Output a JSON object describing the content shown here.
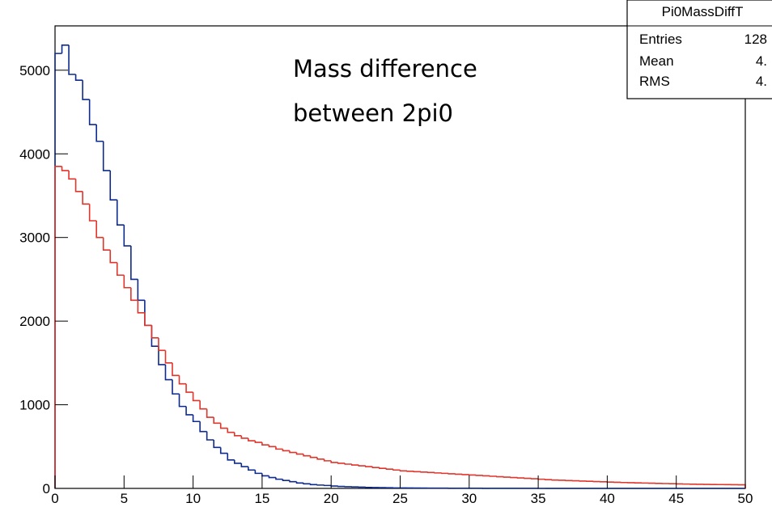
{
  "chart_data": {
    "type": "histogram",
    "annotation": [
      "Mass difference",
      "between 2pi0"
    ],
    "stats": {
      "title": "Pi0MassDiffT",
      "rows": [
        [
          "Entries",
          "128"
        ],
        [
          "Mean",
          "4."
        ],
        [
          "RMS",
          "4."
        ]
      ]
    },
    "bins": [
      0,
      0.5,
      1,
      1.5,
      2,
      2.5,
      3,
      3.5,
      4,
      4.5,
      5,
      5.5,
      6,
      6.5,
      7,
      7.5,
      8,
      8.5,
      9,
      9.5,
      10,
      10.5,
      11,
      11.5,
      12,
      12.5,
      13,
      13.5,
      14,
      14.5,
      15,
      15.5,
      16,
      16.5,
      17,
      17.5,
      18,
      18.5,
      19,
      19.5,
      20,
      20.5,
      21,
      21.5,
      22,
      22.5,
      23,
      23.5,
      24,
      24.5,
      25,
      25.5,
      26,
      26.5,
      27,
      27.5,
      28,
      28.5,
      29,
      29.5,
      30,
      30.5,
      31,
      31.5,
      32,
      32.5,
      33,
      33.5,
      34,
      34.5,
      35,
      35.5,
      36,
      36.5,
      37,
      37.5,
      38,
      38.5,
      39,
      39.5,
      40,
      40.5,
      41,
      41.5,
      42,
      42.5,
      43,
      43.5,
      44,
      44.5,
      45,
      45.5,
      46,
      46.5,
      47,
      47.5,
      48,
      48.5,
      49,
      49.5,
      50
    ],
    "series": [
      {
        "color": "#0d2a8c",
        "values": [
          5200,
          5300,
          4950,
          4880,
          4650,
          4350,
          4150,
          3800,
          3450,
          3150,
          2900,
          2500,
          2250,
          1950,
          1700,
          1480,
          1300,
          1130,
          980,
          880,
          800,
          680,
          580,
          490,
          420,
          340,
          300,
          260,
          220,
          180,
          150,
          130,
          110,
          95,
          80,
          65,
          55,
          45,
          40,
          35,
          28,
          24,
          20,
          18,
          15,
          12,
          10,
          9,
          8,
          6,
          5,
          5,
          4,
          4,
          3,
          3,
          3,
          2,
          2,
          2,
          2,
          2,
          1,
          1,
          1,
          1,
          1,
          1,
          1,
          1,
          0,
          0,
          0,
          0,
          0,
          0,
          0,
          0,
          0,
          0,
          0,
          0,
          0,
          0,
          0,
          0,
          0,
          0,
          0,
          0,
          0,
          0,
          0,
          0,
          0,
          0,
          0,
          0,
          0,
          0
        ]
      },
      {
        "color": "#e0352b",
        "values": [
          3850,
          3800,
          3700,
          3550,
          3400,
          3200,
          3000,
          2850,
          2700,
          2550,
          2400,
          2250,
          2100,
          1950,
          1800,
          1650,
          1500,
          1350,
          1250,
          1150,
          1050,
          950,
          850,
          780,
          720,
          670,
          630,
          600,
          570,
          550,
          520,
          500,
          470,
          450,
          430,
          410,
          390,
          370,
          350,
          330,
          310,
          300,
          290,
          280,
          270,
          260,
          250,
          240,
          230,
          220,
          210,
          205,
          200,
          195,
          190,
          185,
          180,
          175,
          170,
          165,
          160,
          155,
          150,
          145,
          140,
          135,
          130,
          125,
          120,
          115,
          110,
          105,
          100,
          97,
          94,
          91,
          88,
          85,
          82,
          79,
          76,
          73,
          70,
          68,
          66,
          64,
          62,
          60,
          58,
          56,
          54,
          52,
          50,
          49,
          48,
          47,
          46,
          45,
          44,
          43
        ]
      }
    ],
    "xlim": [
      0,
      50
    ],
    "xticks": [
      0,
      5,
      10,
      15,
      20,
      25,
      30,
      35,
      40,
      45,
      50
    ],
    "ylim": [
      0,
      5530
    ],
    "yticks": [
      0,
      1000,
      2000,
      3000,
      4000,
      5000
    ]
  }
}
